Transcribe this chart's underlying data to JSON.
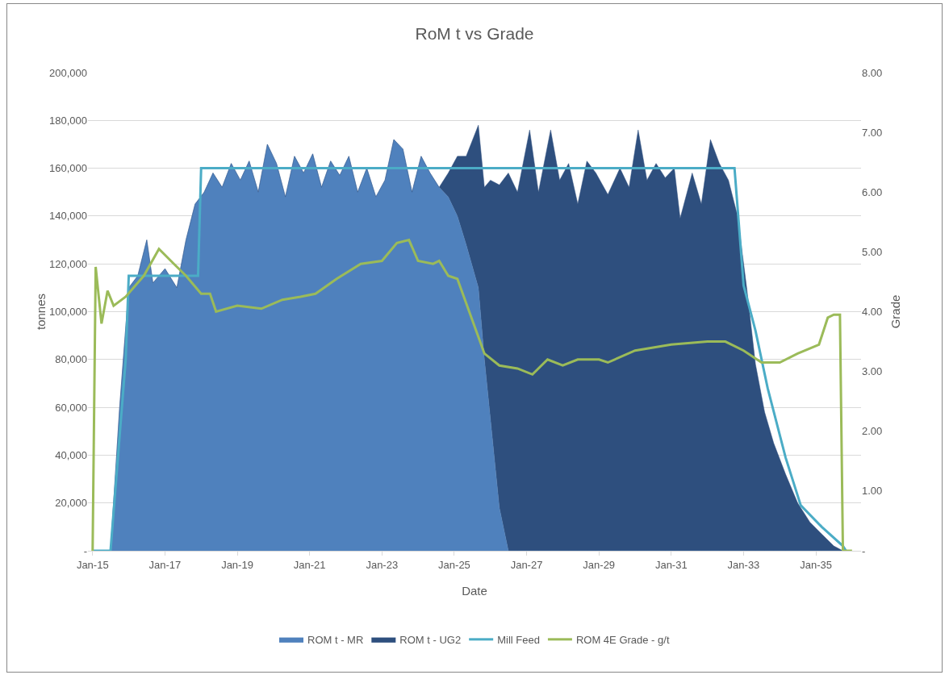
{
  "chart_data": {
    "type": "area",
    "title": "RoM t vs Grade",
    "xlabel": "Date",
    "ylabel": "tonnes",
    "y2label": "Grade",
    "stacked": true,
    "grid": "y",
    "legend": "bottom",
    "marker": "none",
    "line_style": "solid",
    "x": [
      "2015-01",
      "2015-07",
      "2015-10",
      "2016-01",
      "2016-04",
      "2016-07",
      "2016-09",
      "2017-01",
      "2017-05",
      "2017-08",
      "2017-11",
      "2018-02",
      "2018-05",
      "2018-08",
      "2018-11",
      "2019-02",
      "2019-05",
      "2019-08",
      "2019-11",
      "2020-02",
      "2020-05",
      "2020-08",
      "2020-11",
      "2021-02",
      "2021-05",
      "2021-08",
      "2021-11",
      "2022-02",
      "2022-05",
      "2022-08",
      "2022-11",
      "2023-02",
      "2023-05",
      "2023-08",
      "2023-11",
      "2024-02",
      "2024-05",
      "2024-08",
      "2024-11",
      "2025-02",
      "2025-05",
      "2025-09",
      "2025-11",
      "2026-01",
      "2026-04",
      "2026-07",
      "2026-10",
      "2027-02",
      "2027-05",
      "2027-09",
      "2027-12",
      "2028-03",
      "2028-06",
      "2028-09",
      "2028-12",
      "2029-04",
      "2029-08",
      "2029-11",
      "2030-02",
      "2030-05",
      "2030-08",
      "2030-11",
      "2031-02",
      "2031-04",
      "2031-08",
      "2031-11",
      "2032-02",
      "2032-05",
      "2032-08",
      "2032-11",
      "2033-02",
      "2033-05",
      "2033-08",
      "2033-11",
      "2034-03",
      "2034-07",
      "2034-11",
      "2035-03",
      "2035-07",
      "2035-10"
    ],
    "series": [
      {
        "name": "ROM t - MR",
        "color": "#4f81bd",
        "values": [
          0,
          0,
          60000,
          110000,
          115000,
          130000,
          112000,
          118000,
          110000,
          130000,
          145000,
          150000,
          158000,
          152000,
          162000,
          155000,
          163000,
          150000,
          170000,
          162000,
          148000,
          165000,
          158000,
          166000,
          152000,
          163000,
          157000,
          165000,
          150000,
          160000,
          148000,
          155000,
          172000,
          168000,
          150000,
          165000,
          158000,
          152000,
          148000,
          140000,
          128000,
          110000,
          80000,
          55000,
          18000,
          0,
          0,
          0,
          0,
          0,
          0,
          0,
          0,
          0,
          0,
          0,
          0,
          0,
          0,
          0,
          0,
          0,
          0,
          0,
          0,
          0,
          0,
          0,
          0,
          0,
          0,
          0,
          0,
          0,
          0,
          0,
          0,
          0,
          0,
          0
        ]
      },
      {
        "name": "ROM t - UG2",
        "color": "#2e4f7e",
        "values": [
          0,
          0,
          0,
          0,
          0,
          0,
          0,
          0,
          0,
          0,
          0,
          0,
          0,
          0,
          0,
          0,
          0,
          0,
          0,
          0,
          0,
          0,
          0,
          0,
          0,
          0,
          0,
          0,
          0,
          0,
          0,
          0,
          0,
          0,
          0,
          0,
          0,
          0,
          10000,
          25000,
          37000,
          68000,
          72000,
          100000,
          135000,
          158000,
          150000,
          176000,
          150000,
          176000,
          155000,
          162000,
          145000,
          163000,
          158000,
          149000,
          160000,
          152000,
          176000,
          155000,
          162000,
          156000,
          160000,
          139000,
          158000,
          145000,
          172000,
          162000,
          155000,
          140000,
          110000,
          78000,
          58000,
          45000,
          32000,
          20000,
          12000,
          7000,
          2000,
          0
        ]
      },
      {
        "name": "Mill Feed",
        "type": "line",
        "color": "#4bacc6",
        "x": [
          "2015-01",
          "2015-07",
          "2015-12",
          "2016-01",
          "2017-12",
          "2018-01",
          "2032-10",
          "2033-01",
          "2033-05",
          "2033-09",
          "2034-03",
          "2034-08",
          "2035-03",
          "2035-10",
          "2035-11"
        ],
        "values": [
          0,
          0,
          80000,
          115000,
          115000,
          160000,
          160000,
          111000,
          92000,
          68000,
          39000,
          19000,
          10000,
          2000,
          0
        ]
      },
      {
        "name": "ROM 4E Grade - g/t",
        "type": "line",
        "axis": "y2",
        "color": "#9bbb59",
        "x": [
          "2015-01",
          "2015-02",
          "2015-04",
          "2015-06",
          "2015-08",
          "2015-12",
          "2016-06",
          "2016-11",
          "2017-04",
          "2017-08",
          "2018-01",
          "2018-04",
          "2018-06",
          "2019-01",
          "2019-09",
          "2020-04",
          "2020-10",
          "2021-03",
          "2021-10",
          "2022-06",
          "2023-01",
          "2023-06",
          "2023-10",
          "2024-01",
          "2024-06",
          "2024-08",
          "2024-11",
          "2025-02",
          "2025-06",
          "2025-11",
          "2026-04",
          "2026-10",
          "2027-03",
          "2027-08",
          "2028-01",
          "2028-06",
          "2029-01",
          "2029-04",
          "2030-01",
          "2031-01",
          "2032-01",
          "2032-07",
          "2033-01",
          "2033-07",
          "2034-01",
          "2034-07",
          "2035-02",
          "2035-05",
          "2035-07",
          "2035-09",
          "2035-10",
          "2036-01"
        ],
        "values": [
          0,
          4.75,
          3.8,
          4.35,
          4.1,
          4.25,
          4.6,
          5.05,
          4.8,
          4.6,
          4.3,
          4.3,
          4.0,
          4.1,
          4.05,
          4.2,
          4.25,
          4.3,
          4.55,
          4.8,
          4.85,
          5.15,
          5.2,
          4.85,
          4.8,
          4.85,
          4.6,
          4.55,
          4.0,
          3.3,
          3.1,
          3.05,
          2.95,
          3.2,
          3.1,
          3.2,
          3.2,
          3.15,
          3.35,
          3.45,
          3.5,
          3.5,
          3.35,
          3.15,
          3.15,
          3.3,
          3.45,
          3.9,
          3.95,
          3.95,
          0,
          0
        ]
      }
    ],
    "xlim": [
      "2014-11-15",
      "2036-04-01"
    ],
    "xticks": [
      {
        "value": "2015-01-01",
        "label": "Jan-15"
      },
      {
        "value": "2017-01-01",
        "label": "Jan-17"
      },
      {
        "value": "2019-01-01",
        "label": "Jan-19"
      },
      {
        "value": "2021-01-01",
        "label": "Jan-21"
      },
      {
        "value": "2023-01-01",
        "label": "Jan-23"
      },
      {
        "value": "2025-01-01",
        "label": "Jan-25"
      },
      {
        "value": "2027-01-01",
        "label": "Jan-27"
      },
      {
        "value": "2029-01-01",
        "label": "Jan-29"
      },
      {
        "value": "2031-01-01",
        "label": "Jan-31"
      },
      {
        "value": "2033-01-01",
        "label": "Jan-33"
      },
      {
        "value": "2035-01-01",
        "label": "Jan-35"
      }
    ],
    "ylim": [
      0,
      200000
    ],
    "yticks": [
      {
        "value": 0,
        "label": "-"
      },
      {
        "value": 20000,
        "label": "20,000"
      },
      {
        "value": 40000,
        "label": "40,000"
      },
      {
        "value": 60000,
        "label": "60,000"
      },
      {
        "value": 80000,
        "label": "80,000"
      },
      {
        "value": 100000,
        "label": "100,000"
      },
      {
        "value": 120000,
        "label": "120,000"
      },
      {
        "value": 140000,
        "label": "140,000"
      },
      {
        "value": 160000,
        "label": "160,000"
      },
      {
        "value": 180000,
        "label": "180,000"
      },
      {
        "value": 200000,
        "label": "200,000"
      }
    ],
    "y2lim": [
      0,
      8
    ],
    "y2ticks": [
      {
        "value": 0,
        "label": "-"
      },
      {
        "value": 1,
        "label": "1.00"
      },
      {
        "value": 2,
        "label": "2.00"
      },
      {
        "value": 3,
        "label": "3.00"
      },
      {
        "value": 4,
        "label": "4.00"
      },
      {
        "value": 5,
        "label": "5.00"
      },
      {
        "value": 6,
        "label": "6.00"
      },
      {
        "value": 7,
        "label": "7.00"
      },
      {
        "value": 8,
        "label": "8.00"
      }
    ]
  }
}
